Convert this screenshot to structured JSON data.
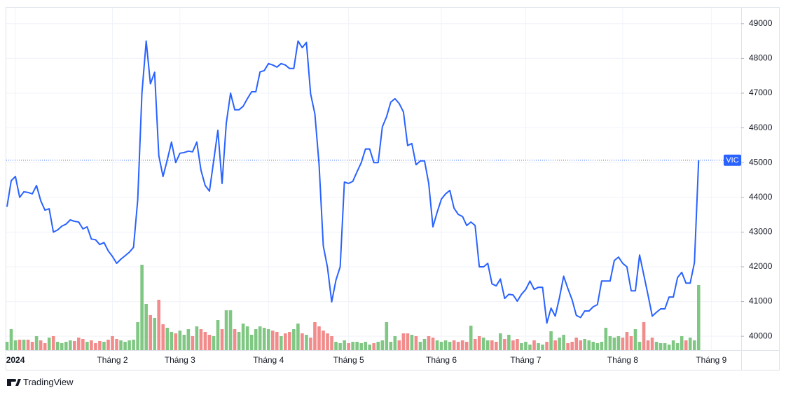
{
  "chart_data": {
    "type": "line",
    "symbol": "VIC",
    "brand": "TradingView",
    "color": "#2962ff",
    "up_color": "#81c784",
    "down_color": "#f28b8b",
    "categories": [
      null,
      null,
      "2024",
      null,
      null,
      null,
      null,
      null,
      null,
      null,
      null,
      null,
      null,
      null,
      null,
      null,
      null,
      null,
      null,
      null,
      null,
      null,
      null,
      null,
      null,
      "Tháng 2",
      null,
      null,
      null,
      null,
      null,
      null,
      null,
      null,
      null,
      null,
      null,
      null,
      null,
      null,
      null,
      "Tháng 3",
      null,
      null,
      null,
      null,
      null,
      null,
      null,
      null,
      null,
      null,
      null,
      null,
      null,
      null,
      null,
      null,
      null,
      null,
      null,
      null,
      "Tháng 4",
      null,
      null,
      null,
      null,
      null,
      null,
      null,
      null,
      null,
      null,
      null,
      null,
      null,
      null,
      null,
      null,
      null,
      null,
      "Tháng 5",
      null,
      null,
      null,
      null,
      null,
      null,
      null,
      null,
      null,
      null,
      null,
      null,
      null,
      null,
      null,
      null,
      null,
      null,
      null,
      null,
      null,
      "Tháng 6",
      null,
      null,
      null,
      null,
      null,
      null,
      null,
      null,
      null,
      null,
      null,
      null,
      null,
      null,
      null,
      null,
      null,
      null,
      null,
      "Tháng 7",
      null,
      null,
      null,
      null,
      null,
      null,
      null,
      null,
      null,
      null,
      null,
      null,
      null,
      null,
      null,
      null,
      null,
      null,
      null,
      null,
      null,
      null,
      "Tháng 8",
      null,
      null,
      null,
      null,
      null,
      null,
      null,
      null,
      null,
      null,
      null,
      null,
      null,
      null,
      null,
      null,
      null,
      null,
      null,
      null,
      "Tháng 9"
    ],
    "values": [
      43730,
      44480,
      44600,
      44000,
      44160,
      44140,
      44100,
      44340,
      43900,
      43630,
      43670,
      43000,
      43060,
      43170,
      43230,
      43350,
      43310,
      43290,
      43090,
      43150,
      42800,
      42780,
      42640,
      42700,
      42460,
      42300,
      42100,
      42220,
      42320,
      42420,
      42560,
      43930,
      47000,
      48500,
      47270,
      47600,
      45200,
      44600,
      45080,
      45590,
      45000,
      45270,
      45290,
      45330,
      45310,
      45590,
      44780,
      44340,
      44180,
      45050,
      45930,
      44400,
      46130,
      47000,
      46520,
      46520,
      46620,
      46840,
      47040,
      47040,
      47610,
      47650,
      47850,
      47810,
      47750,
      47850,
      47810,
      47710,
      47710,
      48500,
      48310,
      48460,
      46980,
      46400,
      44940,
      42600,
      41980,
      40990,
      41620,
      42000,
      44440,
      44400,
      44460,
      44740,
      45000,
      45390,
      45390,
      45000,
      45000,
      46030,
      46320,
      46740,
      46840,
      46700,
      46460,
      45490,
      45550,
      44940,
      45050,
      45050,
      44400,
      43150,
      43570,
      43950,
      44100,
      44200,
      43690,
      43510,
      43450,
      43190,
      43290,
      43190,
      42000,
      42000,
      42100,
      41510,
      41450,
      41650,
      41090,
      41210,
      41190,
      41010,
      41210,
      41350,
      41590,
      41350,
      41410,
      41410,
      40380,
      40810,
      40580,
      41110,
      41730,
      41370,
      41050,
      40600,
      40540,
      40730,
      40730,
      40850,
      40910,
      41590,
      41590,
      41590,
      42180,
      42280,
      42100,
      42000,
      41310,
      41310,
      42340,
      41770,
      41190,
      40580,
      40690,
      40790,
      40790,
      41130,
      41130,
      41690,
      41840,
      41530,
      41530,
      42120,
      45070,
      null,
      null,
      null
    ],
    "volume": [
      12,
      30,
      14,
      15,
      15,
      15,
      12,
      20,
      14,
      10,
      18,
      20,
      12,
      10,
      12,
      14,
      13,
      18,
      16,
      12,
      14,
      10,
      13,
      12,
      15,
      20,
      16,
      14,
      12,
      14,
      15,
      40,
      122,
      66,
      50,
      46,
      72,
      37,
      32,
      26,
      24,
      28,
      22,
      30,
      20,
      34,
      30,
      26,
      22,
      20,
      43,
      30,
      57,
      57,
      30,
      26,
      38,
      34,
      22,
      30,
      34,
      32,
      30,
      28,
      26,
      20,
      24,
      26,
      30,
      38,
      24,
      22,
      18,
      40,
      34,
      28,
      24,
      20,
      12,
      10,
      14,
      10,
      12,
      12,
      10,
      12,
      8,
      10,
      12,
      14,
      40,
      12,
      20,
      14,
      24,
      24,
      22,
      20,
      12,
      16,
      20,
      18,
      14,
      12,
      14,
      12,
      14,
      12,
      14,
      12,
      35,
      16,
      20,
      18,
      14,
      14,
      12,
      24,
      16,
      22,
      14,
      16,
      10,
      12,
      8,
      14,
      10,
      8,
      12,
      27,
      14,
      18,
      22,
      10,
      12,
      18,
      14,
      16,
      14,
      12,
      10,
      12,
      32,
      20,
      18,
      20,
      18,
      26,
      20,
      30,
      12,
      40,
      14,
      18,
      12,
      10,
      10,
      8,
      14,
      10,
      20,
      14,
      18,
      14,
      93,
      null,
      null,
      null
    ],
    "ylim": [
      39600,
      49480
    ],
    "yticks": [
      40000,
      41000,
      42000,
      43000,
      44000,
      45000,
      46000,
      47000,
      48000,
      49000
    ],
    "y2lim": [
      0,
      466
    ],
    "grid": true
  }
}
